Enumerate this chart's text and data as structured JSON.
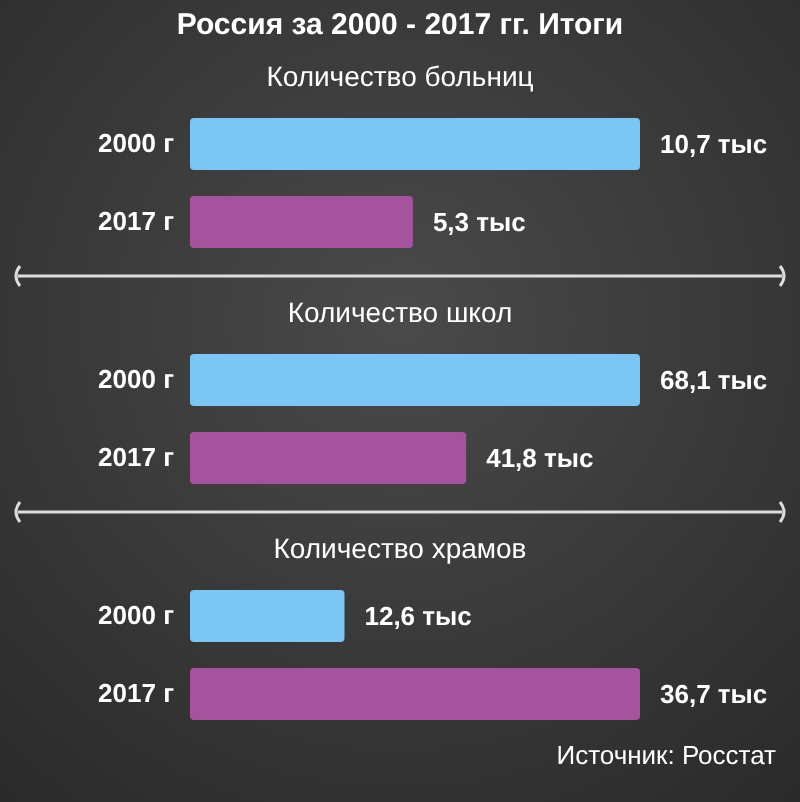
{
  "chart_data": [
    {
      "type": "bar",
      "orientation": "horizontal",
      "title": "Россия за 2000 - 2017 гг. Итоги",
      "subtitle": "Количество больниц",
      "categories": [
        "2000 г",
        "2017 г"
      ],
      "values": [
        10.7,
        5.3
      ],
      "colors": [
        "#7cc6f6",
        "#a5539c"
      ],
      "value_labels": [
        "10,7 тыс",
        "5,3 тыс"
      ]
    },
    {
      "type": "bar",
      "orientation": "horizontal",
      "title": "Количество школ",
      "categories": [
        "2000 г",
        "2017 г"
      ],
      "values": [
        68.1,
        41.8
      ],
      "colors": [
        "#7cc6f6",
        "#a5539c"
      ],
      "value_labels": [
        "68,1 тыс",
        "41,8 тыс"
      ]
    },
    {
      "type": "bar",
      "orientation": "horizontal",
      "title": "Количество храмов",
      "categories": [
        "2000 г",
        "2017 г"
      ],
      "values": [
        12.6,
        36.7
      ],
      "colors": [
        "#7cc6f6",
        "#a5539c"
      ],
      "value_labels": [
        "12,6 тыс",
        "36,7 тыс"
      ],
      "annotations": [
        "Источник: Росстат"
      ]
    }
  ]
}
